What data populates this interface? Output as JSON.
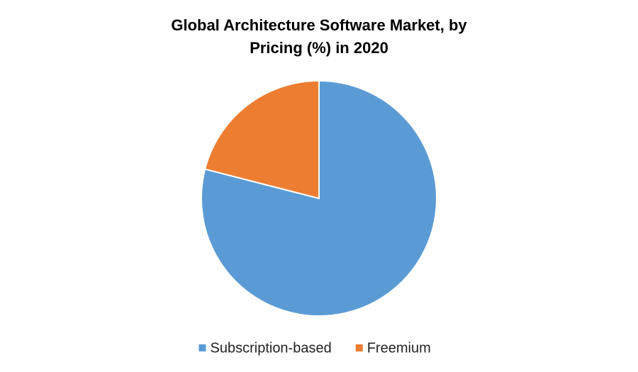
{
  "chart_data": {
    "type": "pie",
    "title": "Global Architecture Software Market, by Pricing (%) in 2020",
    "categories": [
      "Subscription-based",
      "Freemium"
    ],
    "values": [
      79,
      21
    ],
    "colors": [
      "#5b9bd5",
      "#ed7d31"
    ],
    "legend": "bottom"
  }
}
